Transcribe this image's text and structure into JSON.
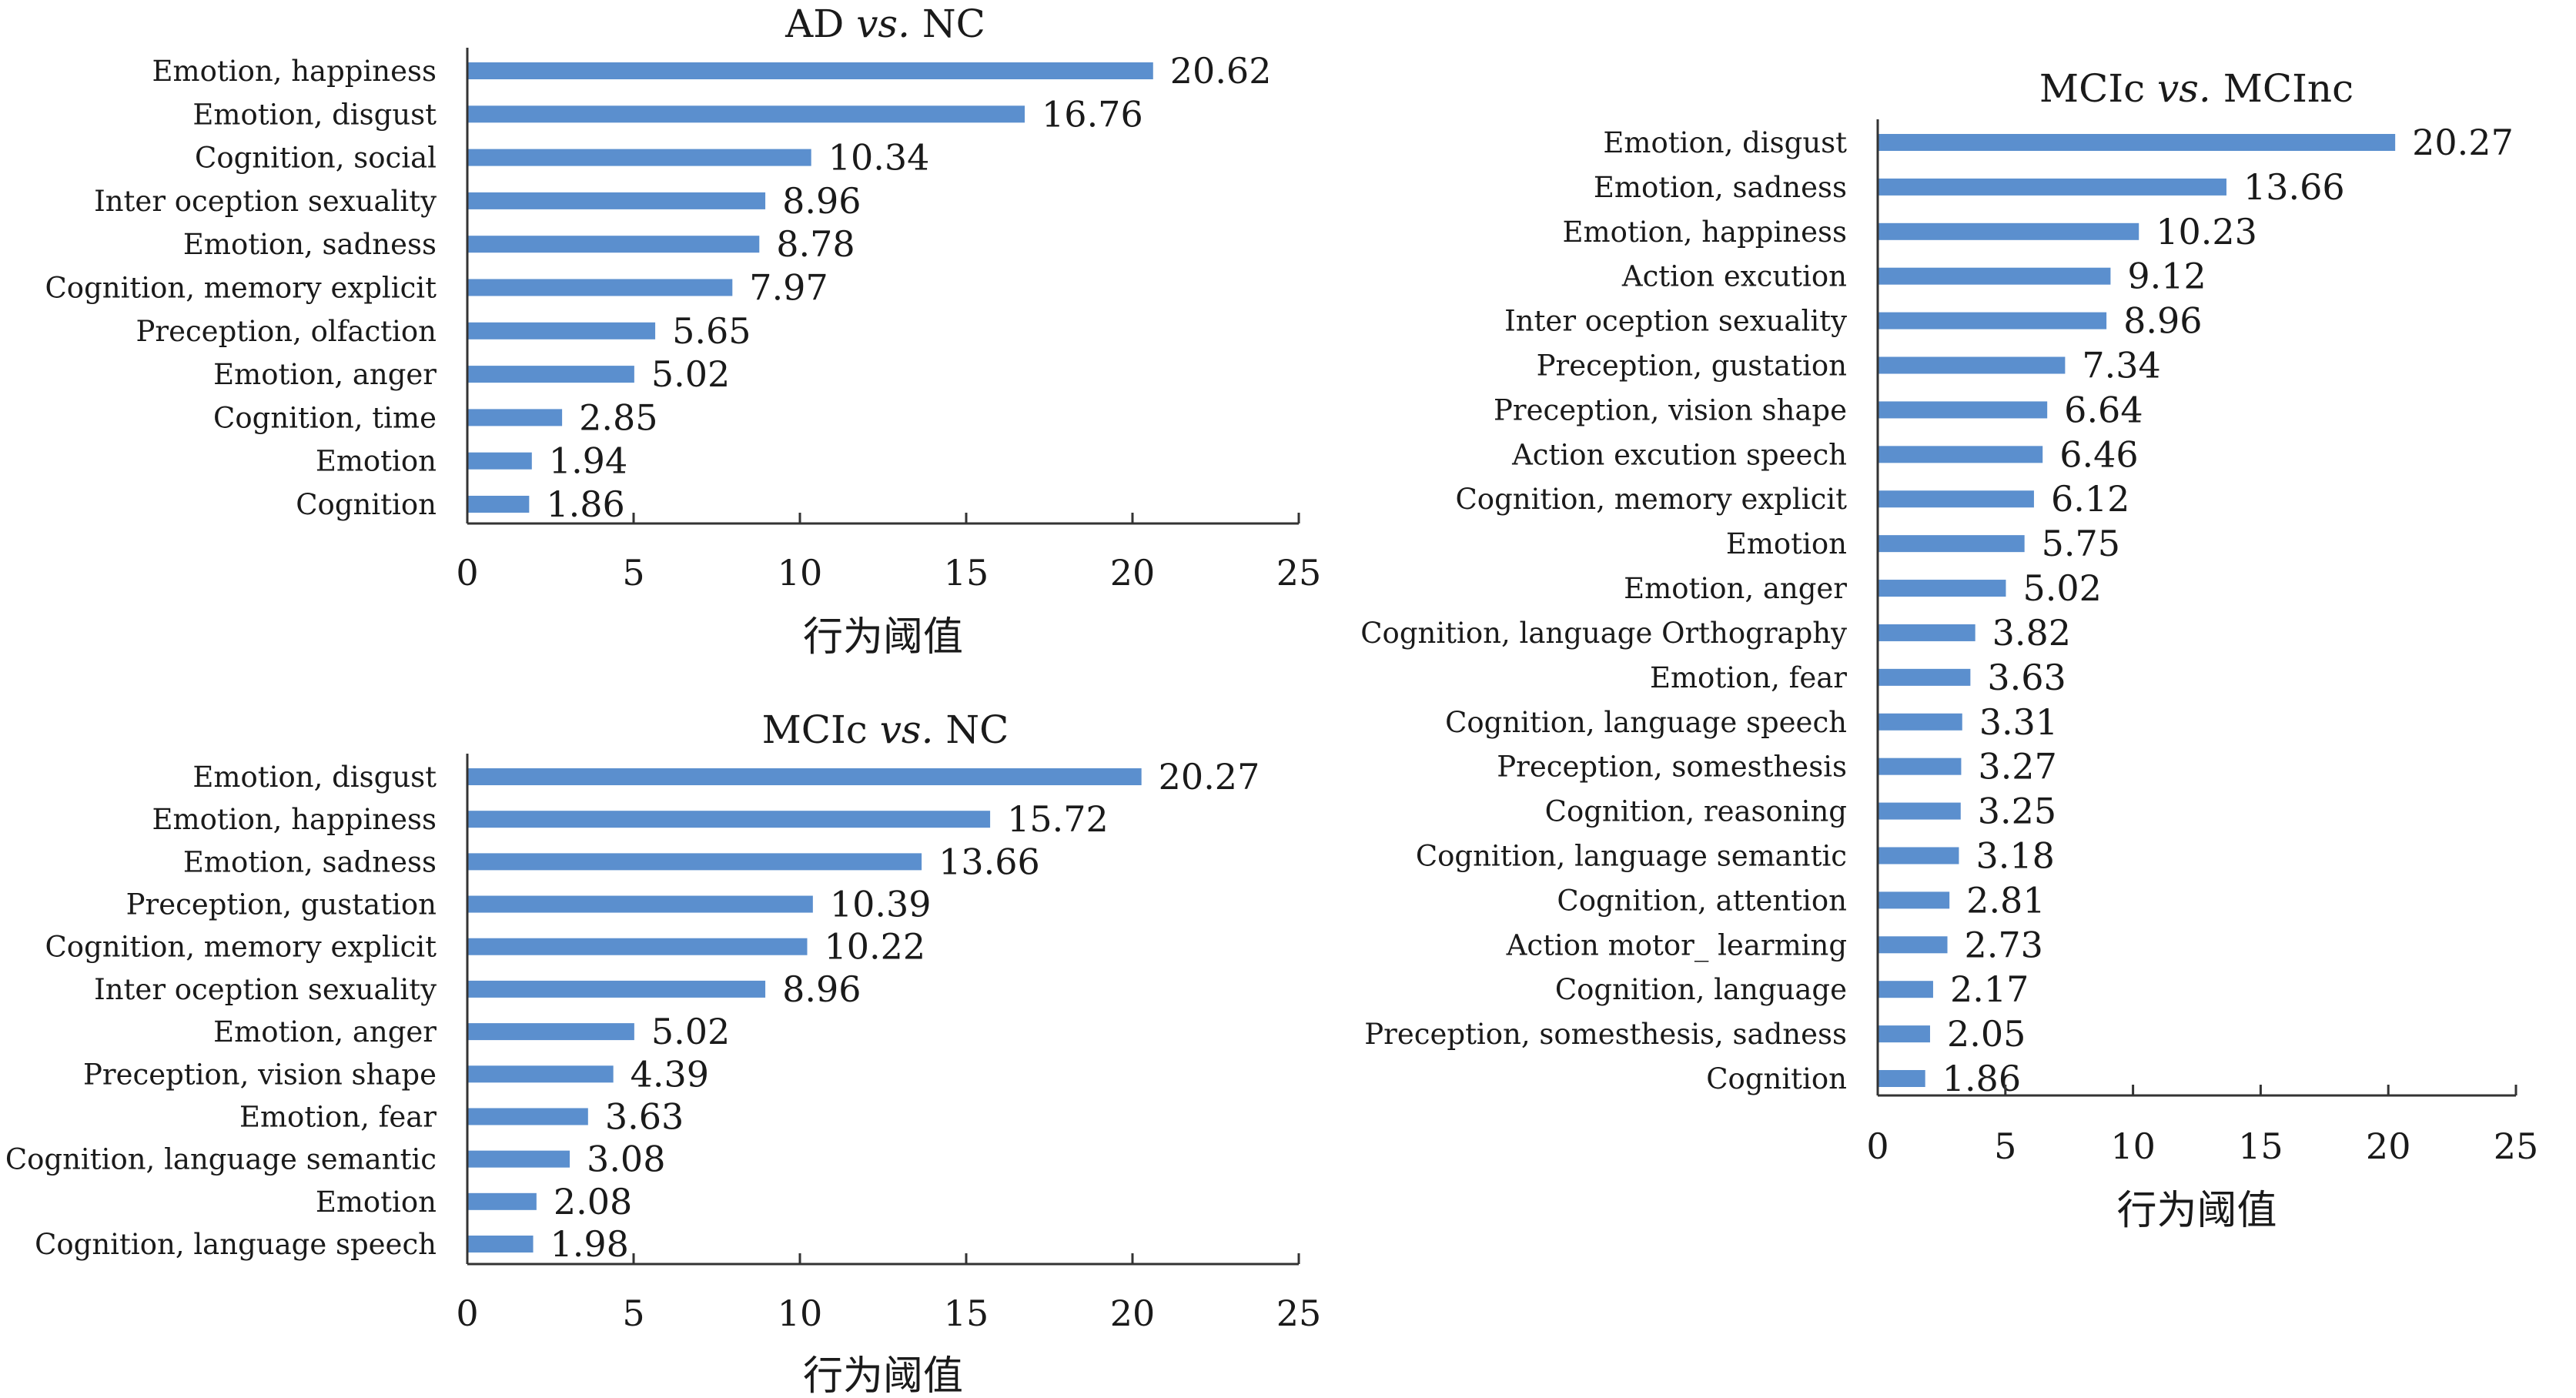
{
  "chart_data": [
    {
      "type": "bar",
      "orientation": "horizontal",
      "title": "AD vs. NC",
      "title_parts": [
        "AD ",
        "vs.",
        " NC"
      ],
      "xlabel": "行为阈值",
      "xlim": [
        0,
        25
      ],
      "xticks": [
        0,
        5,
        10,
        15,
        20,
        25
      ],
      "color": "#5b8fce",
      "categories": [
        "Emotion, happiness",
        "Emotion, disgust",
        "Cognition, social",
        "Inter oception sexuality",
        "Emotion, sadness",
        "Cognition, memory explicit",
        "Preception, olfaction",
        "Emotion, anger",
        "Cognition, time",
        "Emotion",
        "Cognition"
      ],
      "values": [
        20.62,
        16.76,
        10.34,
        8.96,
        8.78,
        7.97,
        5.65,
        5.02,
        2.85,
        1.94,
        1.86
      ],
      "value_labels": [
        "20.62",
        "16.76",
        "10.34",
        "8.96",
        "8.78",
        "7.97",
        "5.65",
        "5.02",
        "2.85",
        "1.94",
        "1.86"
      ]
    },
    {
      "type": "bar",
      "orientation": "horizontal",
      "title": "MCIc vs. NC",
      "title_parts": [
        "MCIc ",
        "vs.",
        " NC"
      ],
      "xlabel": "行为阈值",
      "xlim": [
        0,
        25
      ],
      "xticks": [
        0,
        5,
        10,
        15,
        20,
        25
      ],
      "color": "#5b8fce",
      "categories": [
        "Emotion, disgust",
        "Emotion, happiness",
        "Emotion, sadness",
        "Preception, gustation",
        "Cognition, memory explicit",
        "Inter oception sexuality",
        "Emotion, anger",
        "Preception, vision shape",
        "Emotion, fear",
        "Cognition, language semantic",
        "Emotion",
        "Cognition, language speech"
      ],
      "values": [
        20.27,
        15.72,
        13.66,
        10.39,
        10.22,
        8.96,
        5.02,
        4.39,
        3.63,
        3.08,
        2.08,
        1.98
      ],
      "value_labels": [
        "20.27",
        "15.72",
        "13.66",
        "10.39",
        "10.22",
        "8.96",
        "5.02",
        "4.39",
        "3.63",
        "3.08",
        "2.08",
        "1.98"
      ]
    },
    {
      "type": "bar",
      "orientation": "horizontal",
      "title": "MCIc vs. MCInc",
      "title_parts": [
        "MCIc ",
        "vs.",
        " MCInc"
      ],
      "xlabel": "行为阈值",
      "xlim": [
        0,
        25
      ],
      "xticks": [
        0,
        5,
        10,
        15,
        20,
        25
      ],
      "color": "#5b8fce",
      "categories": [
        "Emotion, disgust",
        "Emotion, sadness",
        "Emotion, happiness",
        "Action excution",
        "Inter oception sexuality",
        "Preception, gustation",
        "Preception, vision shape",
        "Action excution speech",
        "Cognition, memory explicit",
        "Emotion",
        "Emotion, anger",
        "Cognition, language Orthography",
        "Emotion, fear",
        "Cognition, language speech",
        "Preception, somesthesis",
        "Cognition, reasoning",
        "Cognition, language semantic",
        "Cognition, attention",
        "Action motor_ learming",
        "Cognition, language",
        "Preception, somesthesis, sadness",
        "Cognition"
      ],
      "values": [
        20.27,
        13.66,
        10.23,
        9.12,
        8.96,
        7.34,
        6.64,
        6.46,
        6.12,
        5.75,
        5.02,
        3.82,
        3.63,
        3.31,
        3.27,
        3.25,
        3.18,
        2.81,
        2.73,
        2.17,
        2.05,
        1.86
      ],
      "value_labels": [
        "20.27",
        "13.66",
        "10.23",
        "9.12",
        "8.96",
        "7.34",
        "6.64",
        "6.46",
        "6.12",
        "5.75",
        "5.02",
        "3.82",
        "3.63",
        "3.31",
        "3.27",
        "3.25",
        "3.18",
        "2.81",
        "2.73",
        "2.17",
        "2.05",
        "1.86"
      ]
    }
  ]
}
